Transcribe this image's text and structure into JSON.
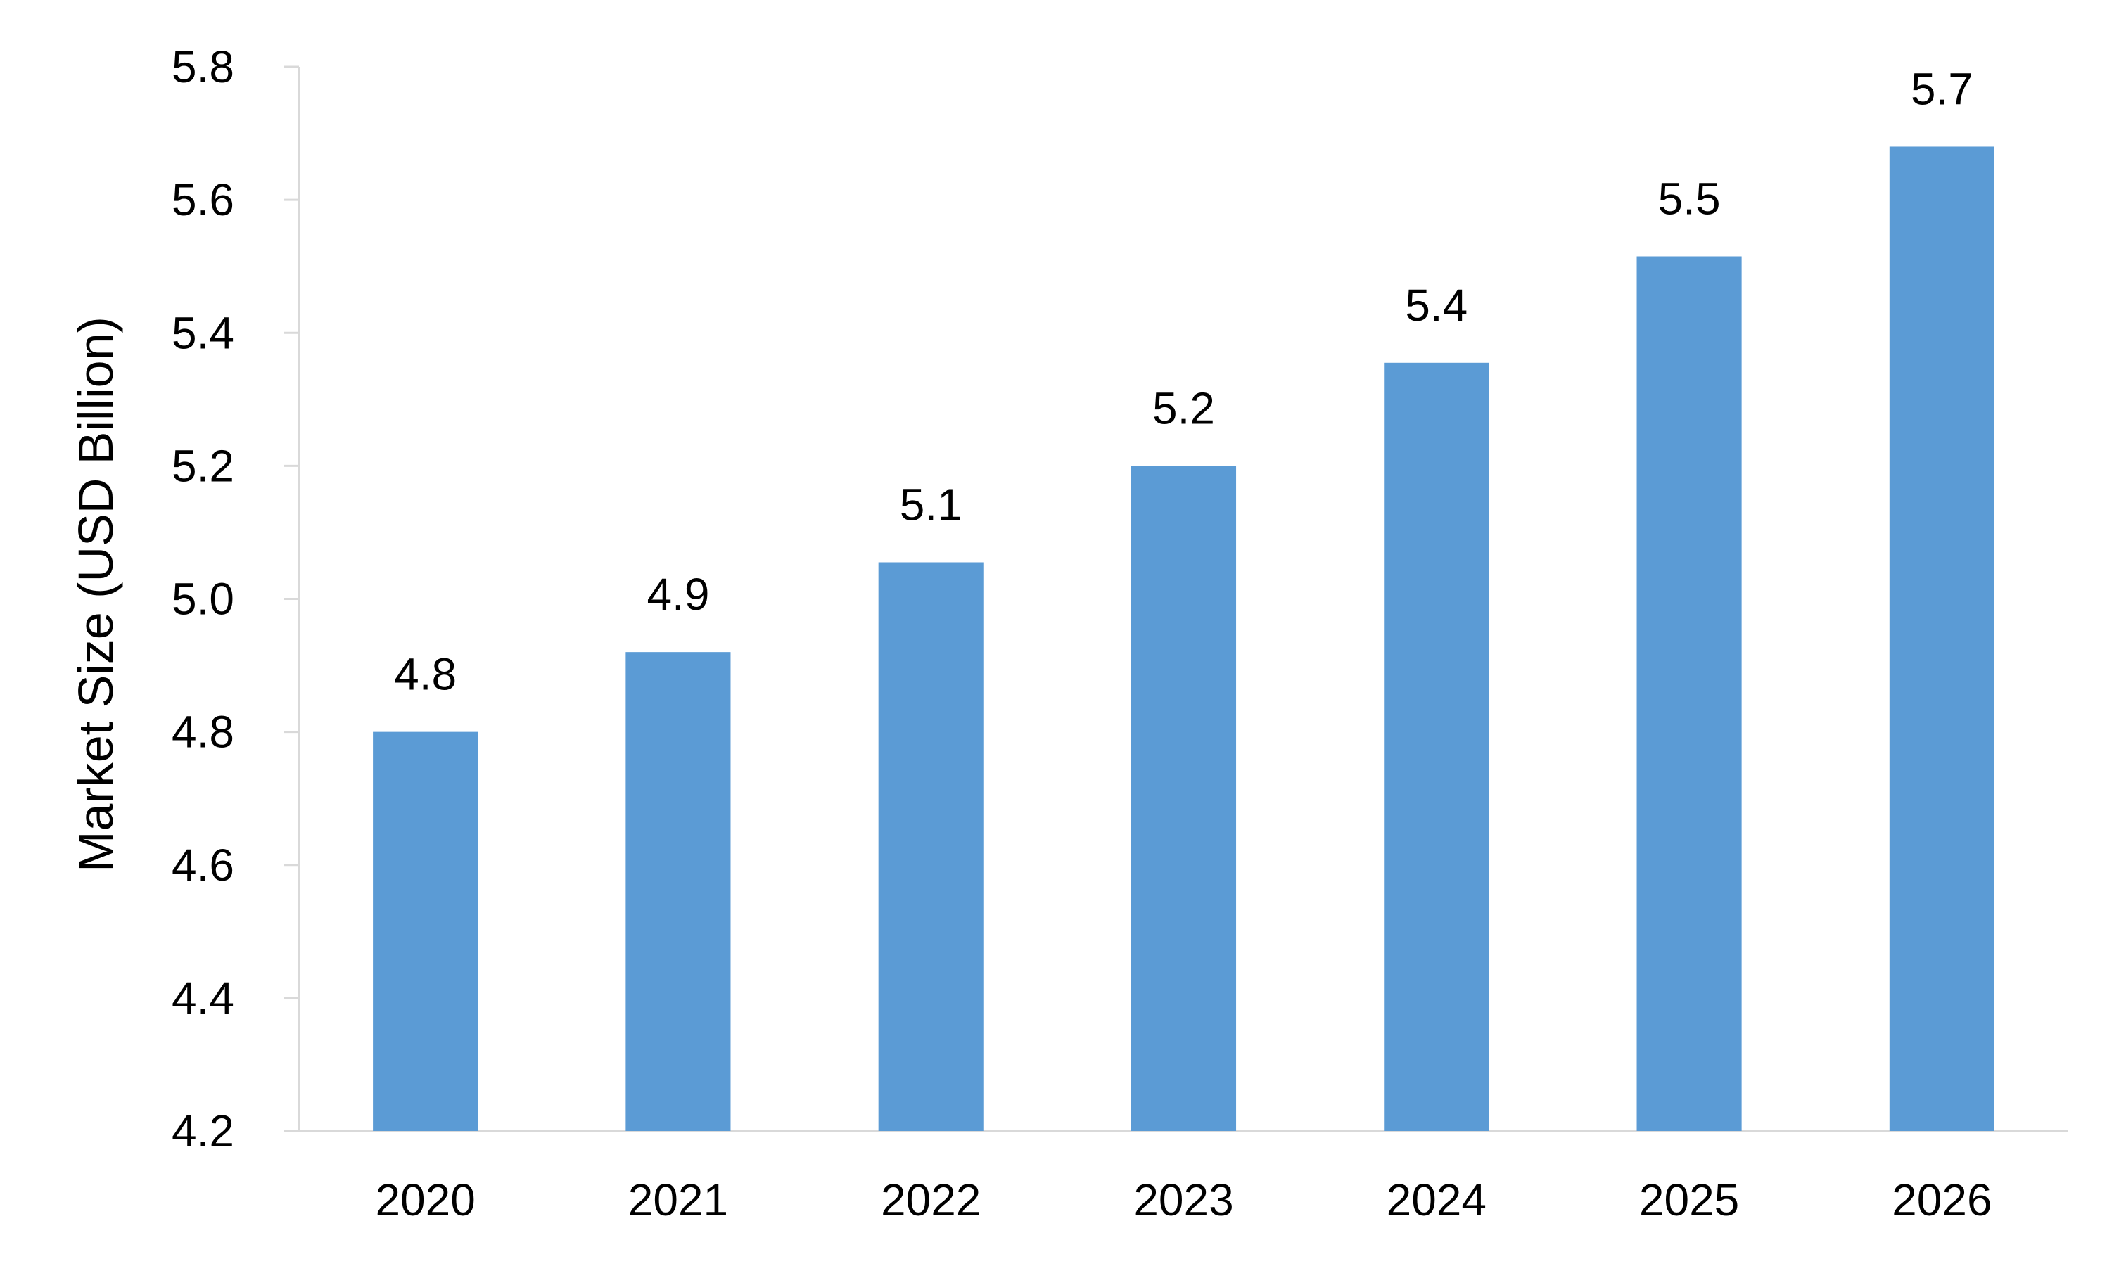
{
  "chart_data": {
    "type": "bar",
    "categories": [
      "2020",
      "2021",
      "2022",
      "2023",
      "2024",
      "2025",
      "2026"
    ],
    "values": [
      4.8,
      4.92,
      5.055,
      5.2,
      5.355,
      5.515,
      5.68
    ],
    "data_labels": [
      "4.8",
      "4.9",
      "5.1",
      "5.2",
      "5.4",
      "5.5",
      "5.7"
    ],
    "ylabel": "Market Size (USD Billion)",
    "xlabel": "",
    "ylim": [
      4.2,
      5.8
    ],
    "yticks": [
      "4.2",
      "4.4",
      "4.6",
      "4.8",
      "5.0",
      "5.2",
      "5.4",
      "5.6",
      "5.8"
    ],
    "grid": false,
    "legend": "none",
    "bar_color": "#5B9BD5",
    "axis_color": "#D9D9D9"
  }
}
